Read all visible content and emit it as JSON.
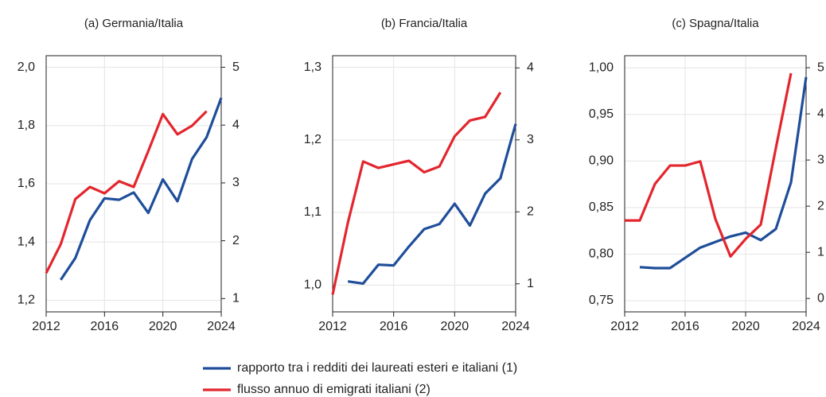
{
  "chart_data": [
    {
      "type": "line",
      "title": "(a) Germania/Italia",
      "xlim": [
        2012,
        2024
      ],
      "xticks": [
        2012,
        2016,
        2020,
        2024
      ],
      "ylim": [
        1.16,
        2.04
      ],
      "yticks": [
        {
          "value": 1.2,
          "label": "1,2"
        },
        {
          "value": 1.4,
          "label": "1,4"
        },
        {
          "value": 1.6,
          "label": "1,6"
        },
        {
          "value": 1.8,
          "label": "1,8"
        },
        {
          "value": 2.0,
          "label": "2,0"
        }
      ],
      "y2lim": [
        0.77,
        5.2
      ],
      "y2ticks": [
        1,
        2,
        3,
        4,
        5
      ],
      "grid": true,
      "series": [
        {
          "name": "rapporto tra i redditi dei laureati esteri e italiani (1)",
          "color": "#1f4e9a",
          "x": [
            2013,
            2014,
            2015,
            2016,
            2017,
            2018,
            2019,
            2020,
            2021,
            2022,
            2023,
            2024
          ],
          "values": [
            1.27,
            1.345,
            1.475,
            1.55,
            1.545,
            1.57,
            1.5,
            1.615,
            1.54,
            1.685,
            1.76,
            1.895
          ]
        },
        {
          "name": "flusso annuo di emigrati italiani (2)",
          "color": "#e3262e",
          "axis": "y2",
          "x": [
            2012,
            2013,
            2014,
            2015,
            2016,
            2017,
            2018,
            2019,
            2020,
            2021,
            2022,
            2023
          ],
          "values": [
            1.44,
            1.94,
            2.72,
            2.93,
            2.82,
            3.03,
            2.93,
            3.55,
            4.19,
            3.84,
            3.99,
            4.24
          ]
        }
      ]
    },
    {
      "type": "line",
      "title": "(b) Francia/Italia",
      "xlim": [
        2012,
        2024
      ],
      "xticks": [
        2012,
        2016,
        2020,
        2024
      ],
      "ylim": [
        0.963,
        1.316
      ],
      "yticks": [
        {
          "value": 1.0,
          "label": "1,0"
        },
        {
          "value": 1.1,
          "label": "1,1"
        },
        {
          "value": 1.2,
          "label": "1,2"
        },
        {
          "value": 1.3,
          "label": "1,3"
        }
      ],
      "y2lim": [
        0.61,
        4.17
      ],
      "y2ticks": [
        1,
        2,
        3,
        4
      ],
      "grid": true,
      "series": [
        {
          "color": "#1f4e9a",
          "x": [
            2013,
            2014,
            2015,
            2016,
            2017,
            2018,
            2019,
            2020,
            2021,
            2022,
            2023,
            2024
          ],
          "values": [
            1.005,
            1.002,
            1.028,
            1.027,
            1.053,
            1.077,
            1.084,
            1.112,
            1.082,
            1.126,
            1.147,
            1.222
          ]
        },
        {
          "color": "#e3262e",
          "axis": "y2",
          "x": [
            2012,
            2013,
            2014,
            2015,
            2016,
            2017,
            2018,
            2019,
            2020,
            2021,
            2022,
            2023
          ],
          "values": [
            0.85,
            1.85,
            2.7,
            2.61,
            2.66,
            2.71,
            2.55,
            2.63,
            3.05,
            3.27,
            3.32,
            3.66
          ]
        }
      ]
    },
    {
      "type": "line",
      "title": "(c) Spagna/Italia",
      "xlim": [
        2012,
        2024
      ],
      "xticks": [
        2012,
        2016,
        2020,
        2024
      ],
      "ylim": [
        0.738,
        1.013
      ],
      "yticks": [
        {
          "value": 0.75,
          "label": "0,75"
        },
        {
          "value": 0.8,
          "label": "0,80"
        },
        {
          "value": 0.85,
          "label": "0,85"
        },
        {
          "value": 0.9,
          "label": "0,90"
        },
        {
          "value": 0.95,
          "label": "0,95"
        },
        {
          "value": 1.0,
          "label": "1,00"
        }
      ],
      "y2lim": [
        -0.29,
        5.26
      ],
      "y2ticks": [
        0,
        1,
        2,
        3,
        4,
        5
      ],
      "grid": true,
      "series": [
        {
          "color": "#1f4e9a",
          "x": [
            2013,
            2014,
            2015,
            2016,
            2017,
            2018,
            2019,
            2020,
            2021,
            2022,
            2023,
            2024
          ],
          "values": [
            0.786,
            0.785,
            0.785,
            0.796,
            0.807,
            0.813,
            0.819,
            0.823,
            0.815,
            0.827,
            0.877,
            0.99
          ]
        },
        {
          "color": "#e3262e",
          "axis": "y2",
          "x": [
            2012,
            2013,
            2014,
            2015,
            2016,
            2017,
            2018,
            2019,
            2020,
            2021,
            2022,
            2023
          ],
          "values": [
            1.69,
            1.69,
            2.48,
            2.88,
            2.88,
            2.97,
            1.72,
            0.91,
            1.29,
            1.6,
            3.26,
            4.88
          ]
        }
      ]
    }
  ]
}
